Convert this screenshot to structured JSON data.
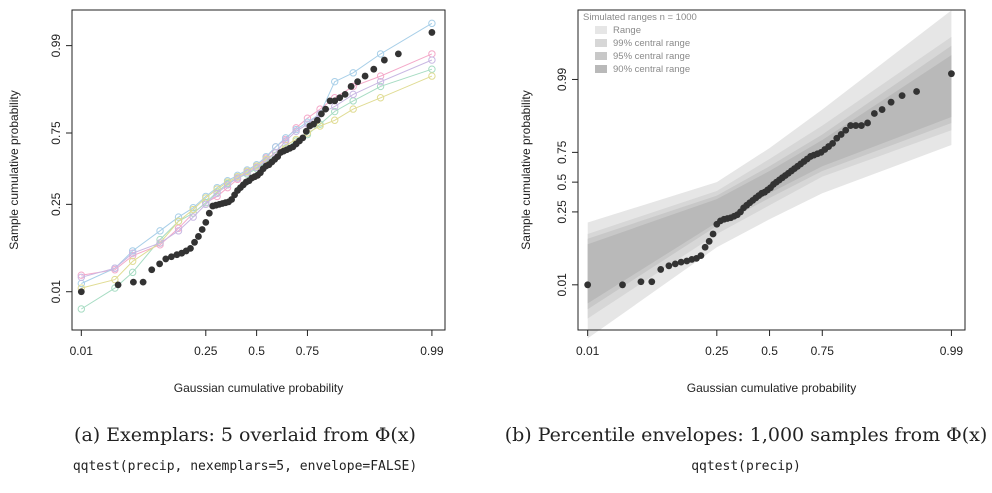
{
  "chart_data": [
    {
      "type": "scatter",
      "panel": "a",
      "xlabel": "Gaussian cumulative probability",
      "ylabel": "Sample cumulative probability",
      "x_tick_labels": [
        "0.01",
        "0.25",
        "0.5",
        "0.75",
        "0.99"
      ],
      "y_tick_labels": [
        "0.01",
        "0.25",
        "0.75",
        "0.99"
      ],
      "caption": "(a) Exemplars: 5 overlaid from Φ(x)",
      "code": "qqtest(precip, nexemplars=5, envelope=FALSE)",
      "colors": {
        "data": "#333333",
        "exemplars": [
          "#f4a9c9",
          "#a8cfe8",
          "#a7dcc3",
          "#e0dc94",
          "#c9b8e3"
        ]
      },
      "series": [
        {
          "role": "data",
          "x": [
            0.01,
            0.033,
            0.051,
            0.066,
            0.082,
            0.099,
            0.114,
            0.129,
            0.145,
            0.16,
            0.175,
            0.19,
            0.205,
            0.22,
            0.235,
            0.25,
            0.265,
            0.28,
            0.295,
            0.31,
            0.325,
            0.34,
            0.355,
            0.37,
            0.385,
            0.4,
            0.415,
            0.43,
            0.445,
            0.46,
            0.475,
            0.49,
            0.505,
            0.52,
            0.535,
            0.55,
            0.565,
            0.58,
            0.595,
            0.61,
            0.625,
            0.64,
            0.655,
            0.67,
            0.685,
            0.7,
            0.715,
            0.73,
            0.745,
            0.76,
            0.775,
            0.79,
            0.805,
            0.82,
            0.835,
            0.85,
            0.865,
            0.88,
            0.895,
            0.91,
            0.925,
            0.94,
            0.955,
            0.97,
            0.99
          ],
          "y": [
            0.01,
            0.014,
            0.016,
            0.016,
            0.028,
            0.036,
            0.044,
            0.048,
            0.052,
            0.055,
            0.06,
            0.066,
            0.082,
            0.1,
            0.125,
            0.155,
            0.2,
            0.24,
            0.245,
            0.25,
            0.255,
            0.26,
            0.265,
            0.28,
            0.31,
            0.34,
            0.36,
            0.38,
            0.4,
            0.41,
            0.43,
            0.44,
            0.45,
            0.47,
            0.5,
            0.52,
            0.53,
            0.55,
            0.57,
            0.59,
            0.62,
            0.63,
            0.64,
            0.65,
            0.66,
            0.68,
            0.7,
            0.72,
            0.76,
            0.79,
            0.8,
            0.82,
            0.85,
            0.87,
            0.9,
            0.9,
            0.91,
            0.92,
            0.94,
            0.95,
            0.96,
            0.97,
            0.98,
            0.985,
            0.995
          ]
        },
        {
          "role": "exemplar",
          "x": [
            0.01,
            0.03,
            0.05,
            0.1,
            0.15,
            0.2,
            0.25,
            0.3,
            0.35,
            0.4,
            0.45,
            0.5,
            0.55,
            0.6,
            0.65,
            0.7,
            0.75,
            0.8,
            0.85,
            0.9,
            0.95,
            0.99
          ],
          "y": [
            0.022,
            0.028,
            0.05,
            0.075,
            0.13,
            0.2,
            0.26,
            0.3,
            0.36,
            0.42,
            0.48,
            0.52,
            0.58,
            0.66,
            0.71,
            0.78,
            0.83,
            0.87,
            0.91,
            0.94,
            0.96,
            0.985
          ]
        },
        {
          "role": "exemplar",
          "x": [
            0.01,
            0.03,
            0.05,
            0.1,
            0.15,
            0.2,
            0.25,
            0.3,
            0.35,
            0.4,
            0.45,
            0.5,
            0.55,
            0.6,
            0.65,
            0.7,
            0.75,
            0.8,
            0.85,
            0.9,
            0.95,
            0.99
          ],
          "y": [
            0.015,
            0.03,
            0.06,
            0.12,
            0.18,
            0.23,
            0.3,
            0.36,
            0.41,
            0.45,
            0.49,
            0.53,
            0.59,
            0.66,
            0.72,
            0.77,
            0.81,
            0.85,
            0.95,
            0.965,
            0.985,
            0.997
          ]
        },
        {
          "role": "exemplar",
          "x": [
            0.01,
            0.03,
            0.05,
            0.1,
            0.15,
            0.2,
            0.25,
            0.3,
            0.35,
            0.4,
            0.45,
            0.5,
            0.55,
            0.6,
            0.65,
            0.7,
            0.75,
            0.8,
            0.85,
            0.9,
            0.95,
            0.99
          ],
          "y": [
            0.004,
            0.012,
            0.025,
            0.09,
            0.16,
            0.2,
            0.26,
            0.33,
            0.39,
            0.43,
            0.46,
            0.5,
            0.55,
            0.6,
            0.65,
            0.7,
            0.74,
            0.8,
            0.86,
            0.9,
            0.94,
            0.97
          ]
        },
        {
          "role": "exemplar",
          "x": [
            0.01,
            0.03,
            0.05,
            0.1,
            0.15,
            0.2,
            0.25,
            0.3,
            0.35,
            0.4,
            0.45,
            0.5,
            0.55,
            0.6,
            0.65,
            0.7,
            0.75,
            0.8,
            0.85,
            0.9,
            0.95,
            0.99
          ],
          "y": [
            0.012,
            0.018,
            0.04,
            0.08,
            0.16,
            0.22,
            0.29,
            0.35,
            0.4,
            0.44,
            0.48,
            0.52,
            0.57,
            0.62,
            0.67,
            0.71,
            0.75,
            0.79,
            0.82,
            0.87,
            0.91,
            0.96
          ]
        },
        {
          "role": "exemplar",
          "x": [
            0.01,
            0.03,
            0.05,
            0.1,
            0.15,
            0.2,
            0.25,
            0.3,
            0.35,
            0.4,
            0.45,
            0.5,
            0.55,
            0.6,
            0.65,
            0.7,
            0.75,
            0.8,
            0.85,
            0.9,
            0.95,
            0.99
          ],
          "y": [
            0.02,
            0.03,
            0.055,
            0.08,
            0.12,
            0.18,
            0.25,
            0.32,
            0.38,
            0.43,
            0.47,
            0.51,
            0.56,
            0.62,
            0.7,
            0.76,
            0.8,
            0.85,
            0.88,
            0.92,
            0.95,
            0.98
          ]
        }
      ]
    },
    {
      "type": "scatter",
      "panel": "b",
      "xlabel": "Gaussian cumulative probability",
      "ylabel": "Sample cumulative probability",
      "x_tick_labels": [
        "0.01",
        "0.25",
        "0.5",
        "0.75",
        "0.99"
      ],
      "y_tick_labels": [
        "0.01",
        "0.25",
        "0.5",
        "0.75",
        "0.99"
      ],
      "legend": {
        "title": "Simulated ranges n = 1000",
        "placement": "top-left",
        "entries": [
          "Range",
          "99% central range",
          "95% central range",
          "90% central range"
        ]
      },
      "caption": "(b) Percentile envelopes: 1,000 samples from Φ(x)",
      "code": "qqtest(precip)",
      "colors": {
        "data": "#333333",
        "envelopes": [
          "#e6e6e6",
          "#d7d7d7",
          "#c8c8c8",
          "#b9b9b9"
        ]
      },
      "envelopes": [
        {
          "name": "Range",
          "x": [
            0.01,
            0.25,
            0.5,
            0.75,
            0.99
          ],
          "lower": [
            0.0002,
            0.07,
            0.2,
            0.4,
            0.8
          ],
          "upper": [
            0.18,
            0.5,
            0.78,
            0.95,
            0.99995
          ]
        },
        {
          "name": "99% central range",
          "x": [
            0.01,
            0.25,
            0.5,
            0.75,
            0.99
          ],
          "lower": [
            0.001,
            0.12,
            0.3,
            0.55,
            0.88
          ],
          "upper": [
            0.12,
            0.42,
            0.7,
            0.9,
            0.9995
          ]
        },
        {
          "name": "95% central range",
          "x": [
            0.01,
            0.25,
            0.5,
            0.75,
            0.99
          ],
          "lower": [
            0.002,
            0.16,
            0.36,
            0.6,
            0.91
          ],
          "upper": [
            0.1,
            0.38,
            0.64,
            0.86,
            0.999
          ]
        },
        {
          "name": "90% central range",
          "x": [
            0.01,
            0.25,
            0.5,
            0.75,
            0.99
          ],
          "lower": [
            0.003,
            0.18,
            0.4,
            0.64,
            0.93
          ],
          "upper": [
            0.08,
            0.35,
            0.6,
            0.83,
            0.998
          ]
        }
      ],
      "series": [
        {
          "role": "data",
          "x": [
            0.01,
            0.03,
            0.05,
            0.066,
            0.082,
            0.099,
            0.114,
            0.129,
            0.145,
            0.16,
            0.175,
            0.19,
            0.205,
            0.22,
            0.235,
            0.25,
            0.265,
            0.28,
            0.295,
            0.31,
            0.325,
            0.34,
            0.355,
            0.37,
            0.385,
            0.4,
            0.415,
            0.43,
            0.445,
            0.46,
            0.475,
            0.49,
            0.505,
            0.52,
            0.535,
            0.55,
            0.565,
            0.58,
            0.595,
            0.61,
            0.625,
            0.64,
            0.655,
            0.67,
            0.685,
            0.7,
            0.715,
            0.73,
            0.745,
            0.76,
            0.775,
            0.79,
            0.805,
            0.82,
            0.835,
            0.85,
            0.865,
            0.88,
            0.895,
            0.91,
            0.925,
            0.94,
            0.955,
            0.97,
            0.99
          ],
          "y": [
            0.01,
            0.01,
            0.012,
            0.012,
            0.024,
            0.029,
            0.032,
            0.035,
            0.037,
            0.04,
            0.042,
            0.048,
            0.07,
            0.09,
            0.12,
            0.17,
            0.19,
            0.2,
            0.205,
            0.21,
            0.22,
            0.23,
            0.25,
            0.28,
            0.3,
            0.32,
            0.34,
            0.36,
            0.38,
            0.4,
            0.41,
            0.43,
            0.45,
            0.48,
            0.5,
            0.52,
            0.54,
            0.56,
            0.58,
            0.6,
            0.62,
            0.64,
            0.66,
            0.68,
            0.7,
            0.72,
            0.73,
            0.74,
            0.75,
            0.77,
            0.79,
            0.81,
            0.84,
            0.86,
            0.88,
            0.9,
            0.9,
            0.9,
            0.91,
            0.94,
            0.95,
            0.965,
            0.975,
            0.98,
            0.993
          ]
        }
      ]
    }
  ]
}
